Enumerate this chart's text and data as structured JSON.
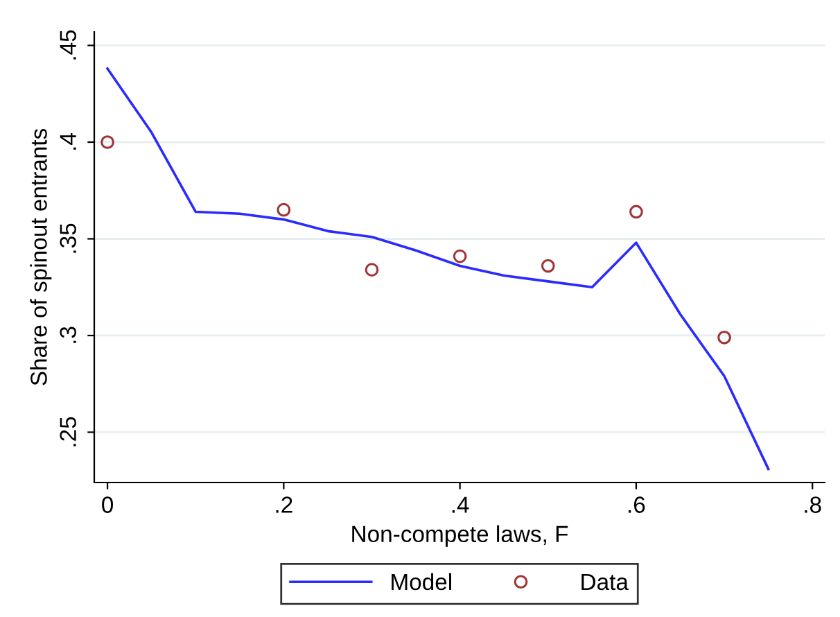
{
  "chart_data": {
    "type": "line",
    "xlabel": "Non-compete laws, F",
    "ylabel": "Share of spinout entrants",
    "series": [
      {
        "name": "Model",
        "color": "#2b2bff",
        "marker": "none",
        "x": [
          0,
          0.05,
          0.1,
          0.15,
          0.2,
          0.25,
          0.3,
          0.35,
          0.4,
          0.45,
          0.5,
          0.55,
          0.6,
          0.65,
          0.7,
          0.75
        ],
        "values": [
          0.438,
          0.405,
          0.364,
          0.363,
          0.36,
          0.354,
          0.351,
          0.344,
          0.336,
          0.331,
          0.328,
          0.325,
          0.348,
          0.311,
          0.279,
          0.231
        ]
      },
      {
        "name": "Data",
        "type": "scatter",
        "color": "#a03434",
        "marker": "circle",
        "x": [
          0,
          0.2,
          0.3,
          0.4,
          0.5,
          0.6,
          0.7
        ],
        "values": [
          0.4,
          0.365,
          0.334,
          0.341,
          0.336,
          0.364,
          0.299
        ]
      }
    ],
    "xlim": [
      -0.015,
      0.814
    ],
    "xticks": [
      {
        "value": 0,
        "label": "0"
      },
      {
        "value": 0.2,
        "label": ".2"
      },
      {
        "value": 0.4,
        "label": ".4"
      },
      {
        "value": 0.6,
        "label": ".6"
      },
      {
        "value": 0.8,
        "label": ".8"
      }
    ],
    "ylim": [
      0.224,
      0.457
    ],
    "yticks": [
      {
        "value": 0.25,
        "label": ".25"
      },
      {
        "value": 0.3,
        "label": ".3"
      },
      {
        "value": 0.35,
        "label": ".35"
      },
      {
        "value": 0.4,
        "label": ".4"
      },
      {
        "value": 0.45,
        "label": ".45"
      }
    ],
    "grid": "y",
    "legend": "bottom"
  }
}
